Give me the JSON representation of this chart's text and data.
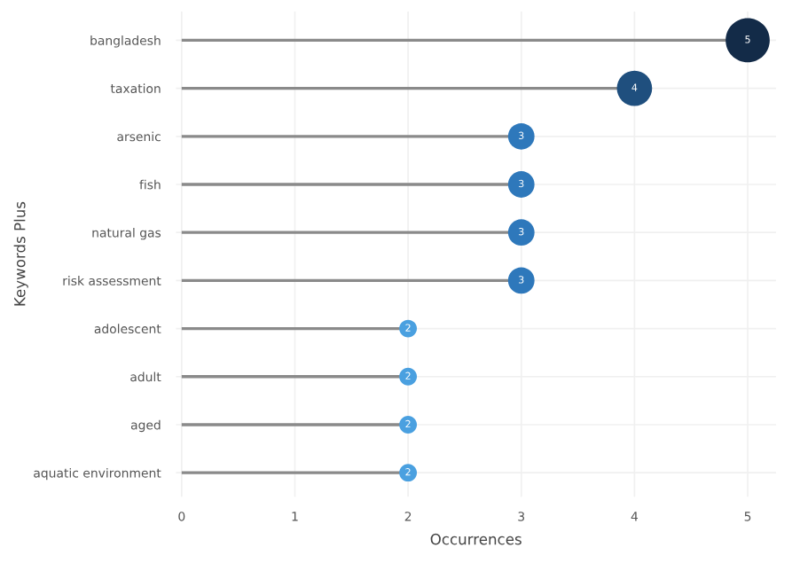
{
  "chart_data": {
    "type": "lollipop",
    "orientation": "horizontal",
    "xlabel": "Occurrences",
    "ylabel": "Keywords Plus",
    "categories": [
      "bangladesh",
      "taxation",
      "arsenic",
      "fish",
      "natural gas",
      "risk assessment",
      "adolescent",
      "adult",
      "aged",
      "aquatic environment"
    ],
    "values": [
      5,
      4,
      3,
      3,
      3,
      3,
      2,
      2,
      2,
      2
    ],
    "colors": [
      "#132b48",
      "#1f4f7e",
      "#2e78bb",
      "#2e78bb",
      "#2e78bb",
      "#2e78bb",
      "#4aa0e0",
      "#4aa0e0",
      "#4aa0e0",
      "#4aa0e0"
    ],
    "sizes": [
      1,
      0.64,
      0.36,
      0.36,
      0.36,
      0.36,
      0.16,
      0.16,
      0.16,
      0.16
    ],
    "xlim": [
      -0.05,
      5.25
    ],
    "xticks": [
      0,
      1,
      2,
      3,
      4,
      5
    ],
    "data_labels": true,
    "grid": true,
    "marker": "circle"
  }
}
